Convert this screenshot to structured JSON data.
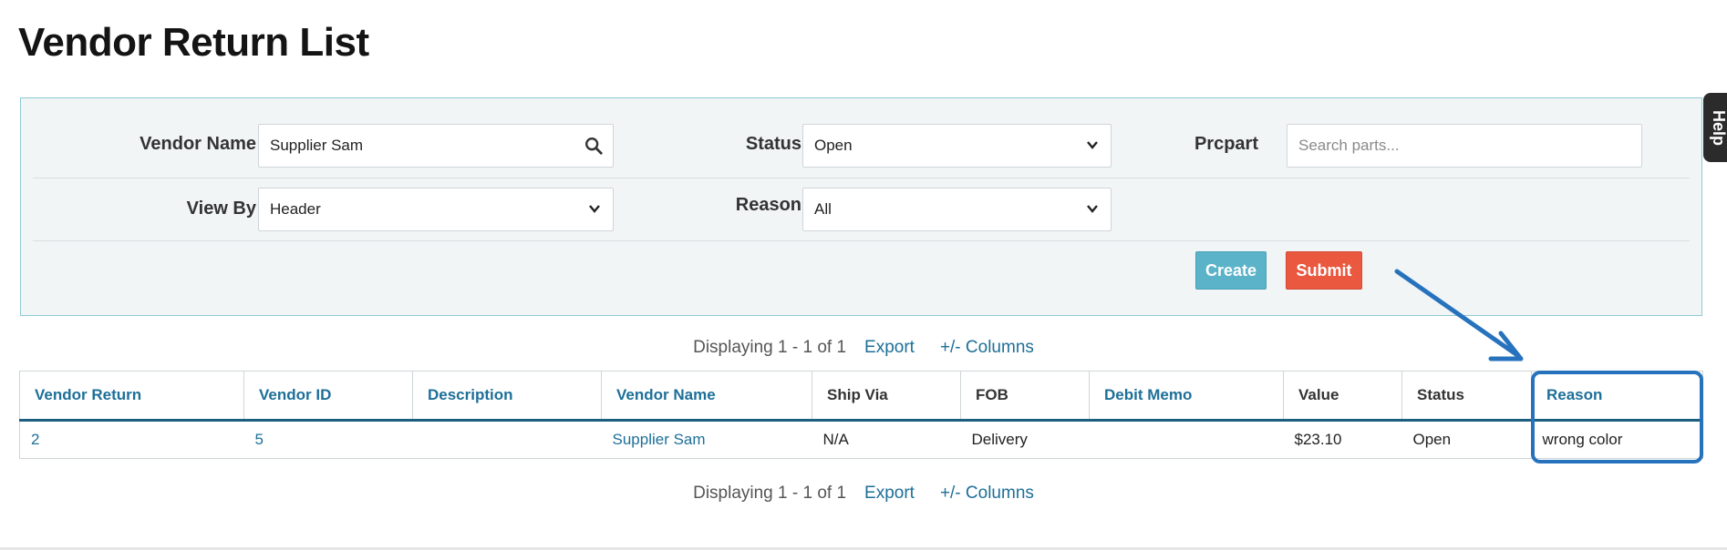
{
  "page": {
    "title": "Vendor Return List"
  },
  "filters": {
    "vendor_name": {
      "label": "Vendor Name",
      "value": "Supplier Sam"
    },
    "status": {
      "label": "Status",
      "value": "Open"
    },
    "prcpart": {
      "label": "Prcpart",
      "placeholder": "Search parts..."
    },
    "view_by": {
      "label": "View By",
      "value": "Header"
    },
    "reason": {
      "label": "Reason",
      "value": "All"
    }
  },
  "actions": {
    "create_label": "Create",
    "submit_label": "Submit"
  },
  "help": {
    "label": "Help"
  },
  "pager": {
    "text": "Displaying 1 - 1 of 1",
    "export_label": "Export",
    "columns_label": "+/- Columns"
  },
  "table": {
    "headers": [
      "Vendor Return",
      "Vendor ID",
      "Description",
      "Vendor Name",
      "Ship Via",
      "FOB",
      "Debit Memo",
      "Value",
      "Status",
      "Reason"
    ],
    "rows": [
      [
        "2",
        "5",
        "",
        "Supplier Sam",
        "N/A",
        "Delivery",
        "",
        "$23.10",
        "Open",
        "wrong color"
      ]
    ]
  },
  "colors": {
    "link": "#1d6f98",
    "create": "#5ab3c9",
    "submit": "#e9583f",
    "annotation": "#2672bd"
  },
  "icons": {
    "search": "search-icon",
    "chevron": "chevron-down-icon"
  }
}
